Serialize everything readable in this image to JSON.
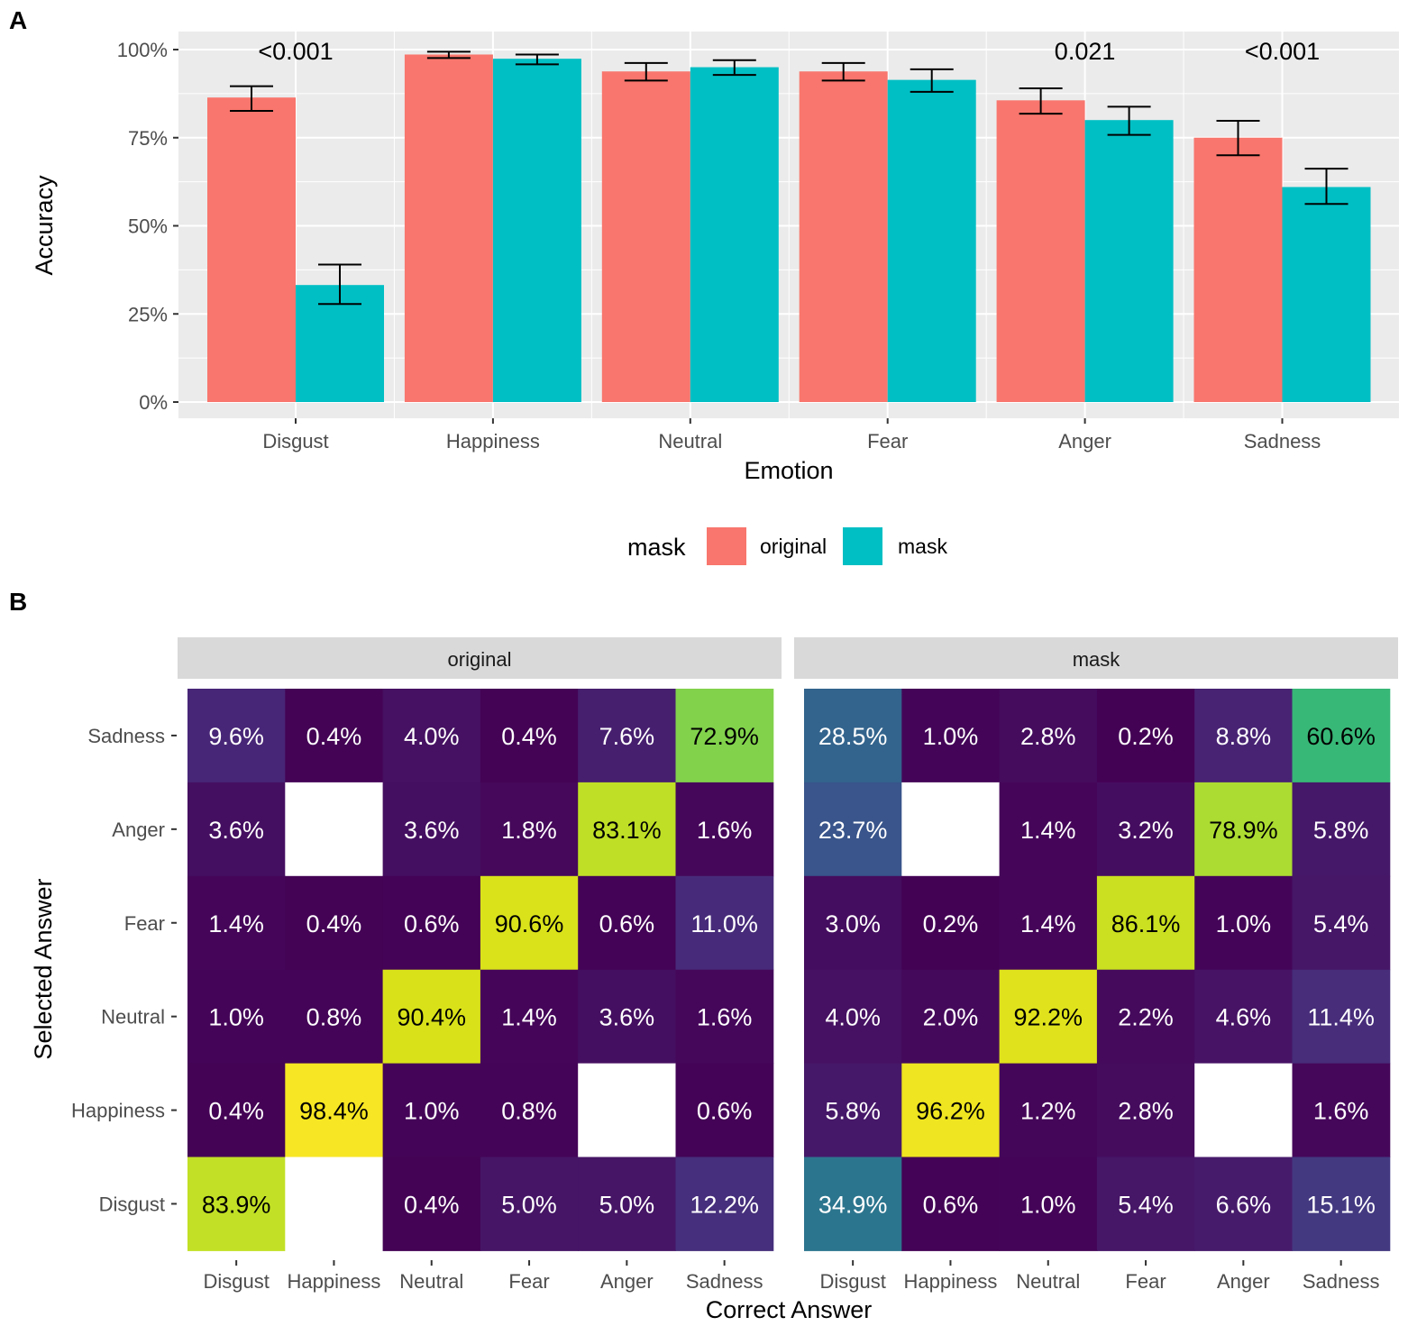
{
  "panel_labels": {
    "a": "A",
    "b": "B"
  },
  "colors": {
    "original": "#F8766D",
    "mask": "#00BFC4",
    "panel_bg": "#EBEBEB",
    "grid": "#FFFFFF",
    "strip_bg": "#D9D9D9"
  },
  "chart_data": [
    {
      "type": "bar",
      "panel": "A",
      "categories": [
        "Disgust",
        "Happiness",
        "Neutral",
        "Fear",
        "Anger",
        "Sadness"
      ],
      "series": [
        {
          "name": "original",
          "values": [
            86.4,
            98.6,
            93.8,
            93.8,
            85.6,
            75.0
          ],
          "err_low": [
            82.6,
            97.6,
            91.2,
            91.2,
            81.8,
            70.0
          ],
          "err_high": [
            89.6,
            99.4,
            96.2,
            96.2,
            89.0,
            79.8
          ]
        },
        {
          "name": "mask",
          "values": [
            33.2,
            97.4,
            95.0,
            91.4,
            80.0,
            61.0
          ],
          "err_low": [
            27.8,
            95.8,
            92.8,
            88.0,
            75.8,
            56.2
          ],
          "err_high": [
            39.0,
            98.6,
            97.0,
            94.4,
            83.8,
            66.2
          ]
        }
      ],
      "ylim": [
        0,
        100
      ],
      "yticks": [
        "0%",
        "25%",
        "50%",
        "75%",
        "100%"
      ],
      "xlabel": "Emotion",
      "ylabel": "Accuracy",
      "annotations": [
        {
          "category": "Disgust",
          "text": "<0.001"
        },
        {
          "category": "Anger",
          "text": "0.021"
        },
        {
          "category": "Sadness",
          "text": "<0.001"
        }
      ],
      "legend": {
        "title": "mask",
        "entries": [
          "original",
          "mask"
        ],
        "position": "bottom"
      }
    },
    {
      "type": "heatmap",
      "panel": "B",
      "xlabel": "Correct Answer",
      "ylabel": "Selected Answer",
      "x_categories": [
        "Disgust",
        "Happiness",
        "Neutral",
        "Fear",
        "Anger",
        "Sadness"
      ],
      "y_categories": [
        "Sadness",
        "Anger",
        "Fear",
        "Neutral",
        "Happiness",
        "Disgust"
      ],
      "facets": [
        {
          "title": "original",
          "matrix": [
            [
              9.6,
              0.4,
              4.0,
              0.4,
              7.6,
              72.9
            ],
            [
              3.6,
              null,
              3.6,
              1.8,
              83.1,
              1.6
            ],
            [
              1.4,
              0.4,
              0.6,
              90.6,
              0.6,
              11.0
            ],
            [
              1.0,
              0.8,
              90.4,
              1.4,
              3.6,
              1.6
            ],
            [
              0.4,
              98.4,
              1.0,
              0.8,
              null,
              0.6
            ],
            [
              83.9,
              null,
              0.4,
              5.0,
              5.0,
              12.2
            ]
          ]
        },
        {
          "title": "mask",
          "matrix": [
            [
              28.5,
              1.0,
              2.8,
              0.2,
              8.8,
              60.6
            ],
            [
              23.7,
              null,
              1.4,
              3.2,
              78.9,
              5.8
            ],
            [
              3.0,
              0.2,
              1.4,
              86.1,
              1.0,
              5.4
            ],
            [
              4.0,
              2.0,
              92.2,
              2.2,
              4.6,
              11.4
            ],
            [
              5.8,
              96.2,
              1.2,
              2.8,
              null,
              1.6
            ],
            [
              34.9,
              0.6,
              1.0,
              5.4,
              6.6,
              15.1
            ]
          ]
        }
      ]
    }
  ]
}
